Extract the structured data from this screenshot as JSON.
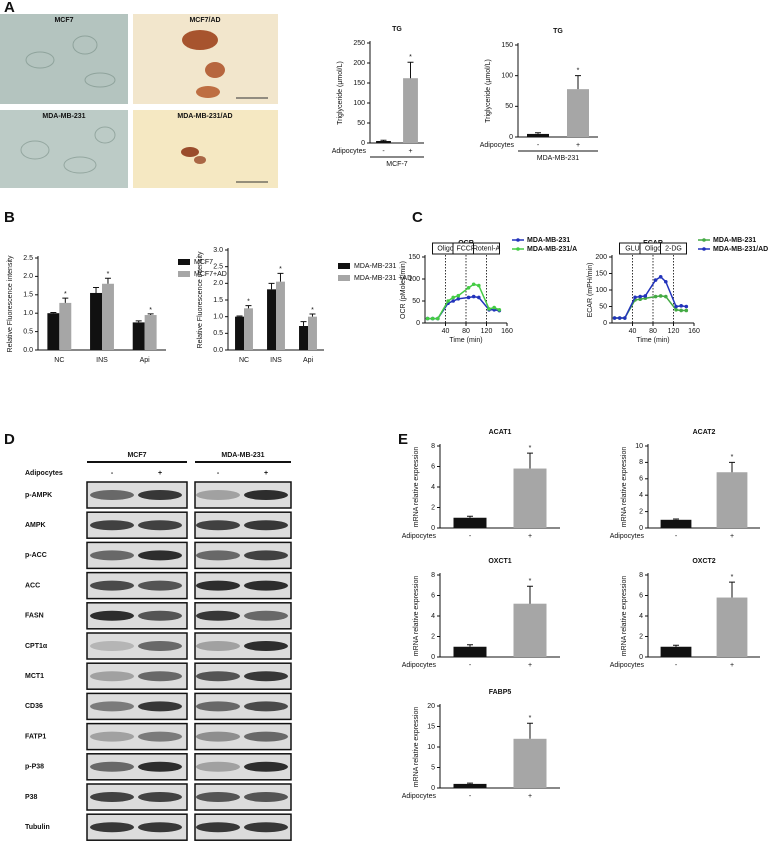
{
  "panel_labels": [
    "A",
    "B",
    "C",
    "D",
    "E"
  ],
  "micrographs": [
    {
      "label": "MCF7"
    },
    {
      "label": "MCF7/AD"
    },
    {
      "label": "MDA-MB-231"
    },
    {
      "label": "MDA-MB-231/AD"
    }
  ],
  "chart_data": [
    {
      "type": "bar",
      "title": "TG",
      "y_label": "Triglyceride (µmol/L)",
      "x_label": "Adipocytes",
      "categories": [
        "-",
        "+"
      ],
      "group_label": "MCF-7",
      "values": [
        5,
        162
      ],
      "errors": [
        2,
        40
      ],
      "colors": [
        "#111111",
        "#a6a6a6"
      ],
      "ylim": [
        0,
        250
      ],
      "yticks": [
        0,
        50,
        100,
        150,
        200,
        250
      ],
      "annotation": "*"
    },
    {
      "type": "bar",
      "title": "TG",
      "y_label": "Triglyceride (µmol/L)",
      "x_label": "Adipocytes",
      "categories": [
        "-",
        "+"
      ],
      "group_label": "MDA-MB-231",
      "values": [
        5,
        78
      ],
      "errors": [
        2,
        22
      ],
      "colors": [
        "#111111",
        "#a6a6a6"
      ],
      "ylim": [
        0,
        150
      ],
      "yticks": [
        0,
        50,
        100,
        150
      ],
      "annotation": "*"
    },
    {
      "type": "bar",
      "y_label": "Relative Fluorescence intensity",
      "categories": [
        "NC",
        "INS",
        "Api"
      ],
      "series": [
        {
          "name": "MCF7",
          "color": "#111111",
          "values": [
            1.0,
            1.55,
            0.75
          ],
          "errors": [
            0.02,
            0.15,
            0.04
          ]
        },
        {
          "name": "MCF7+AD",
          "color": "#a6a6a6",
          "values": [
            1.28,
            1.8,
            0.95
          ],
          "errors": [
            0.13,
            0.15,
            0.03
          ]
        }
      ],
      "ylim": [
        0,
        2.5
      ],
      "yticks": [
        {
          "value": 0,
          "label": "0.0"
        },
        0.5,
        {
          "value": 1,
          "label": "1.0"
        },
        1.5,
        {
          "value": 2,
          "label": "2.0"
        },
        2.5
      ],
      "annotation": "*"
    },
    {
      "type": "bar",
      "y_label": "Relative Fluorescence intensity",
      "categories": [
        "NC",
        "INS",
        "Api"
      ],
      "series": [
        {
          "name": "MDA-MB-231",
          "color": "#111111",
          "values": [
            1.0,
            1.82,
            0.72
          ],
          "errors": [
            0.02,
            0.18,
            0.13
          ]
        },
        {
          "name": "MDA-MB-231 +AD",
          "color": "#a6a6a6",
          "values": [
            1.25,
            2.05,
            1.0
          ],
          "errors": [
            0.08,
            0.25,
            0.08
          ]
        }
      ],
      "ylim": [
        0,
        3
      ],
      "yticks": [
        {
          "value": 0,
          "label": "0.0"
        },
        0.5,
        {
          "value": 1,
          "label": "1.0"
        },
        1.5,
        {
          "value": 2,
          "label": "2.0"
        },
        2.5,
        {
          "value": 3,
          "label": "3.0"
        }
      ],
      "annotation": "*"
    },
    {
      "type": "line",
      "title": "OCR",
      "y_label": "OCR (pMoles/min)",
      "x_label": "Time (min)",
      "x": [
        5,
        15,
        25,
        45,
        55,
        65,
        85,
        95,
        105,
        125,
        135,
        145
      ],
      "series": [
        {
          "name": "MDA-MB-231",
          "color": "#2233bb",
          "values": [
            10,
            10,
            10,
            45,
            50,
            55,
            58,
            60,
            58,
            30,
            30,
            28
          ]
        },
        {
          "name": "MDA-MB-231/A",
          "color": "#44cc44",
          "values": [
            10,
            10,
            10,
            50,
            58,
            62,
            80,
            88,
            85,
            32,
            35,
            30
          ]
        }
      ],
      "xlim": [
        0,
        160
      ],
      "xticks": [
        40,
        80,
        120,
        160
      ],
      "ylim": [
        0,
        150
      ],
      "yticks": [
        0,
        50,
        100,
        150
      ],
      "events": [
        {
          "x": 40,
          "label": "Oligo"
        },
        {
          "x": 80,
          "label": "FCCP"
        },
        {
          "x": 120,
          "label": "Rotenl-A"
        }
      ]
    },
    {
      "type": "line",
      "title": "ECAR",
      "y_label": "ECAR (mPH/min)",
      "x_label": "Time (min)",
      "x": [
        5,
        15,
        25,
        45,
        55,
        65,
        85,
        95,
        105,
        125,
        135,
        145
      ],
      "series": [
        {
          "name": "MDA-MB-231",
          "color": "#44aa44",
          "values": [
            15,
            15,
            15,
            70,
            72,
            75,
            80,
            82,
            80,
            40,
            38,
            38
          ]
        },
        {
          "name": "MDA-MB-231/AD",
          "color": "#2233bb",
          "values": [
            15,
            15,
            15,
            78,
            80,
            82,
            130,
            140,
            125,
            50,
            52,
            50
          ]
        }
      ],
      "xlim": [
        0,
        160
      ],
      "xticks": [
        40,
        80,
        120,
        160
      ],
      "ylim": [
        0,
        200
      ],
      "yticks": [
        0,
        50,
        100,
        150,
        200
      ],
      "events": [
        {
          "x": 40,
          "label": "GLU"
        },
        {
          "x": 80,
          "label": "Oligo"
        },
        {
          "x": 120,
          "label": "2-DG"
        }
      ]
    },
    {
      "type": "bar",
      "title": "ACAT1",
      "y_label": "mRNA relative expression",
      "x_label": "Adipocytes",
      "categories": [
        "-",
        "+"
      ],
      "values": [
        1,
        5.8
      ],
      "errors": [
        0.15,
        1.5
      ],
      "colors": [
        "#111111",
        "#a6a6a6"
      ],
      "ylim": [
        0,
        8
      ],
      "yticks": [
        0,
        2,
        4,
        6,
        8
      ],
      "annotation": "*"
    },
    {
      "type": "bar",
      "title": "ACAT2",
      "y_label": "mRNA relative expression",
      "x_label": "Adipocytes",
      "categories": [
        "-",
        "+"
      ],
      "values": [
        1,
        6.8
      ],
      "errors": [
        0.1,
        1.2
      ],
      "colors": [
        "#111111",
        "#a6a6a6"
      ],
      "ylim": [
        0,
        10
      ],
      "yticks": [
        0,
        2,
        4,
        6,
        8,
        10
      ],
      "annotation": "*"
    },
    {
      "type": "bar",
      "title": "OXCT1",
      "y_label": "mRNA relative expression",
      "x_label": "Adipocytes",
      "categories": [
        "-",
        "+"
      ],
      "values": [
        1,
        5.2
      ],
      "errors": [
        0.2,
        1.7
      ],
      "colors": [
        "#111111",
        "#a6a6a6"
      ],
      "ylim": [
        0,
        8
      ],
      "yticks": [
        0,
        2,
        4,
        6,
        8
      ],
      "annotation": "*"
    },
    {
      "type": "bar",
      "title": "OXCT2",
      "y_label": "mRNA relative expression",
      "x_label": "Adipocytes",
      "categories": [
        "-",
        "+"
      ],
      "values": [
        1,
        5.8
      ],
      "errors": [
        0.15,
        1.5
      ],
      "colors": [
        "#111111",
        "#a6a6a6"
      ],
      "ylim": [
        0,
        8
      ],
      "yticks": [
        0,
        2,
        4,
        6,
        8
      ],
      "annotation": "*"
    },
    {
      "type": "bar",
      "title": "FABP5",
      "y_label": "mRNA relative expression",
      "x_label": "Adipocytes",
      "categories": [
        "-",
        "+"
      ],
      "values": [
        1,
        12
      ],
      "errors": [
        0.2,
        3.8
      ],
      "colors": [
        "#111111",
        "#a6a6a6"
      ],
      "ylim": [
        0,
        20
      ],
      "yticks": [
        0,
        5,
        10,
        15,
        20
      ],
      "annotation": "*"
    }
  ],
  "blot": {
    "columns": [
      "MCF7",
      "MDA-MB-231"
    ],
    "treatment_label": "Adipocytes",
    "treatment_levels": [
      "-",
      "+",
      "-",
      "+"
    ],
    "proteins": [
      "p-AMPK",
      "AMPK",
      "p-ACC",
      "ACC",
      "FASN",
      "CPT1α",
      "MCT1",
      "CD36",
      "FATP1",
      "p-P38",
      "P38",
      "Tubulin"
    ]
  }
}
